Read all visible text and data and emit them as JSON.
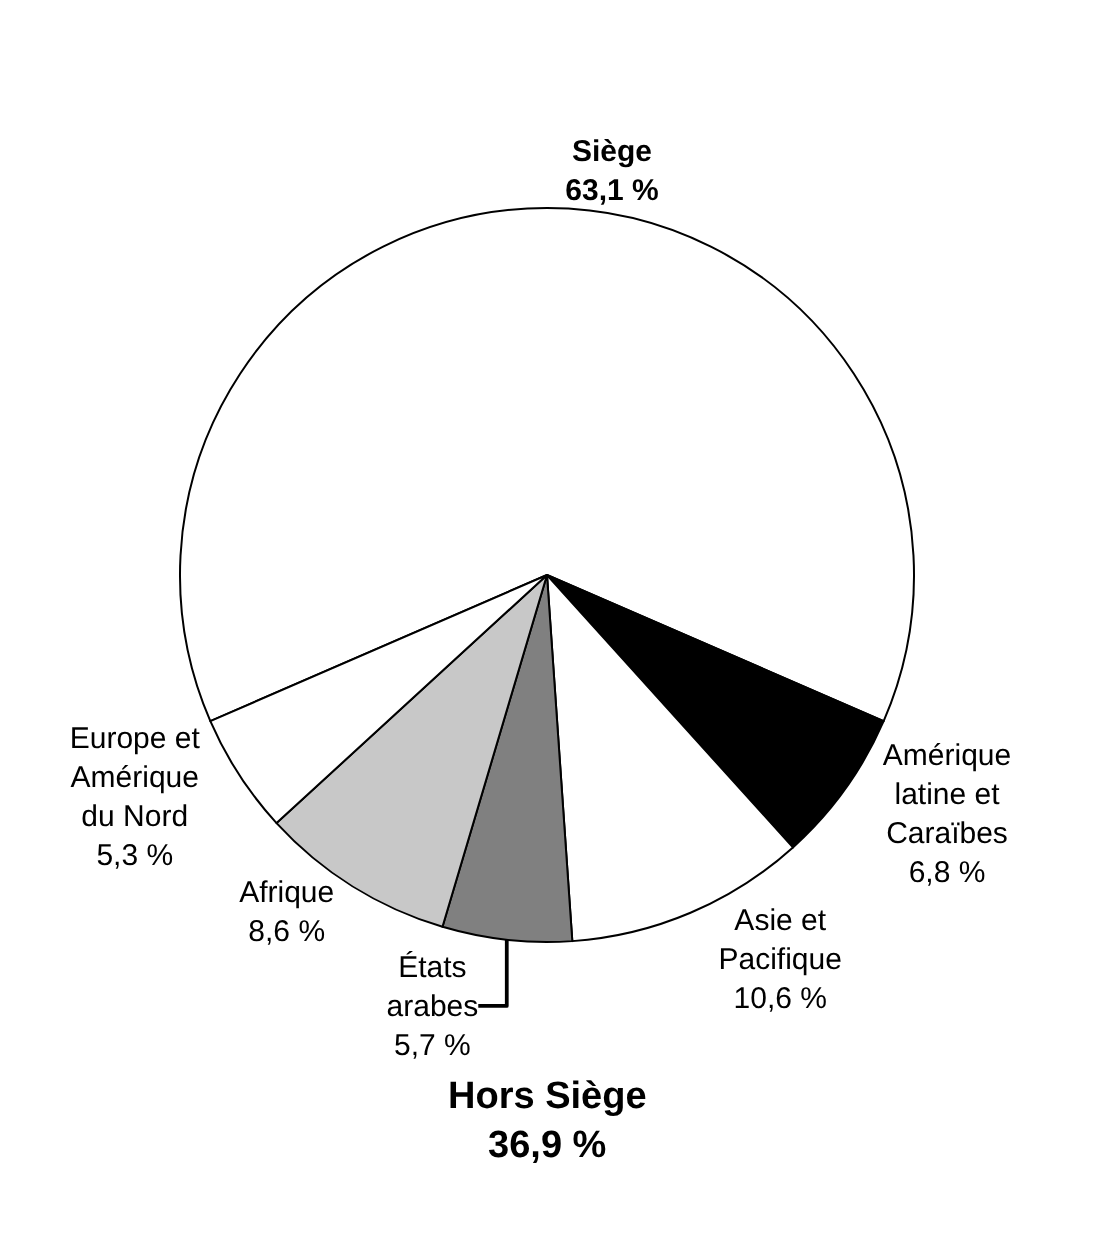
{
  "chart_data": {
    "type": "pie",
    "categories": [
      "Siège",
      "Amérique latine et Caraïbes",
      "Asie et Pacifique",
      "États arabes",
      "Afrique",
      "Europe et Amérique du Nord"
    ],
    "values": [
      63.1,
      6.8,
      10.6,
      5.7,
      8.6,
      5.3
    ],
    "value_labels": [
      "63,1 %",
      "6,8 %",
      "10,6 %",
      "5,7 %",
      "8,6 %",
      "5,3 %"
    ],
    "colors": [
      "#ffffff",
      "#000000",
      "#ffffff",
      "#808080",
      "#c8c8c8",
      "#ffffff"
    ],
    "annotations": [
      "Hors Siège\n36,9 %"
    ],
    "legend": false
  }
}
